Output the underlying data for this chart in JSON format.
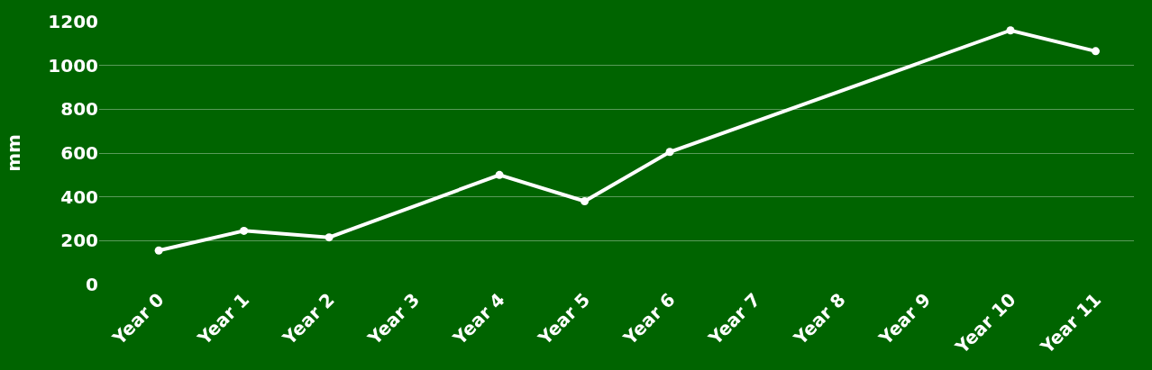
{
  "chart_data": {
    "type": "line",
    "ylabel": "mm",
    "categories": [
      "Year 0",
      "Year 1",
      "Year 2",
      "Year 3",
      "Year 4",
      "Year 5",
      "Year 6",
      "Year 7",
      "Year 8",
      "Year 9",
      "Year 10",
      "Year 11"
    ],
    "series": [
      {
        "color": "#ffffff",
        "values": [
          155,
          245,
          215,
          null,
          500,
          380,
          605,
          null,
          null,
          null,
          1160,
          1065
        ]
      }
    ],
    "ylim": [
      0,
      1200
    ],
    "yticks": [
      0,
      200,
      400,
      600,
      800,
      1000,
      1200
    ],
    "grid": "y",
    "legend": false,
    "marker": "circle",
    "line_style": "solid"
  }
}
